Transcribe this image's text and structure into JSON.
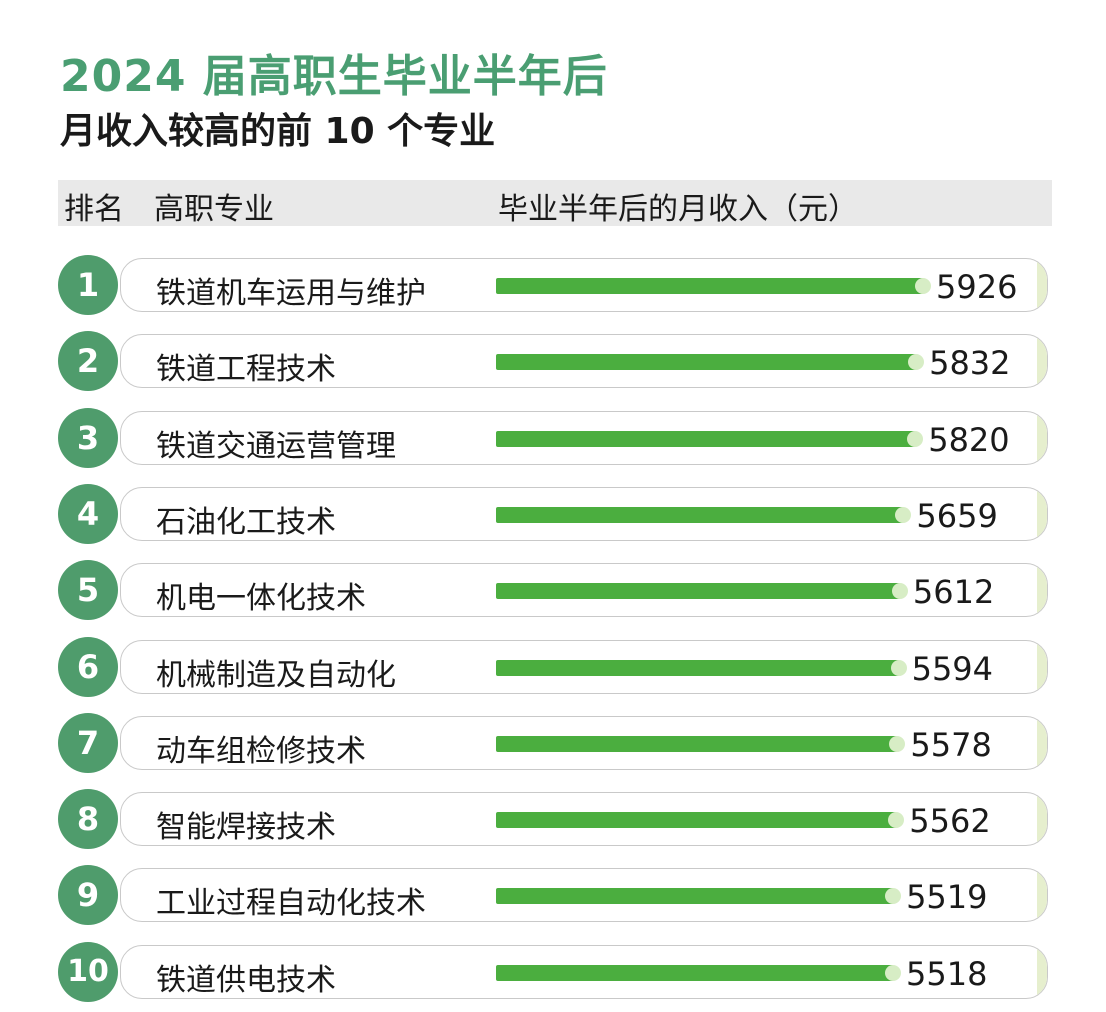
{
  "title": "2024 届高职生毕业半年后",
  "subtitle": "月收入较高的前 10 个专业",
  "header": {
    "rank": "排名",
    "major": "高职专业",
    "income": "毕业半年后的月收入（元）"
  },
  "chart_data": {
    "type": "bar",
    "orientation": "horizontal",
    "title": "2024 届高职生毕业半年后",
    "subtitle": "月收入较高的前 10 个专业",
    "ylabel": "毕业半年后的月收入（元）",
    "ranks": [
      "1",
      "2",
      "3",
      "4",
      "5",
      "6",
      "7",
      "8",
      "9",
      "10"
    ],
    "categories": [
      "铁道机车运用与维护",
      "铁道工程技术",
      "铁道交通运营管理",
      "石油化工技术",
      "机电一体化技术",
      "机械制造及自动化",
      "动车组检修技术",
      "智能焊接技术",
      "工业过程自动化技术",
      "铁道供电技术"
    ],
    "values": [
      5926,
      5832,
      5820,
      5659,
      5612,
      5594,
      5578,
      5562,
      5519,
      5518
    ],
    "value_labels": [
      "5926",
      "5832",
      "5820",
      "5659",
      "5612",
      "5594",
      "5578",
      "5562",
      "5519",
      "5518"
    ],
    "bar_color": "#4bae3f",
    "rank_color": "#4f9c6c"
  }
}
